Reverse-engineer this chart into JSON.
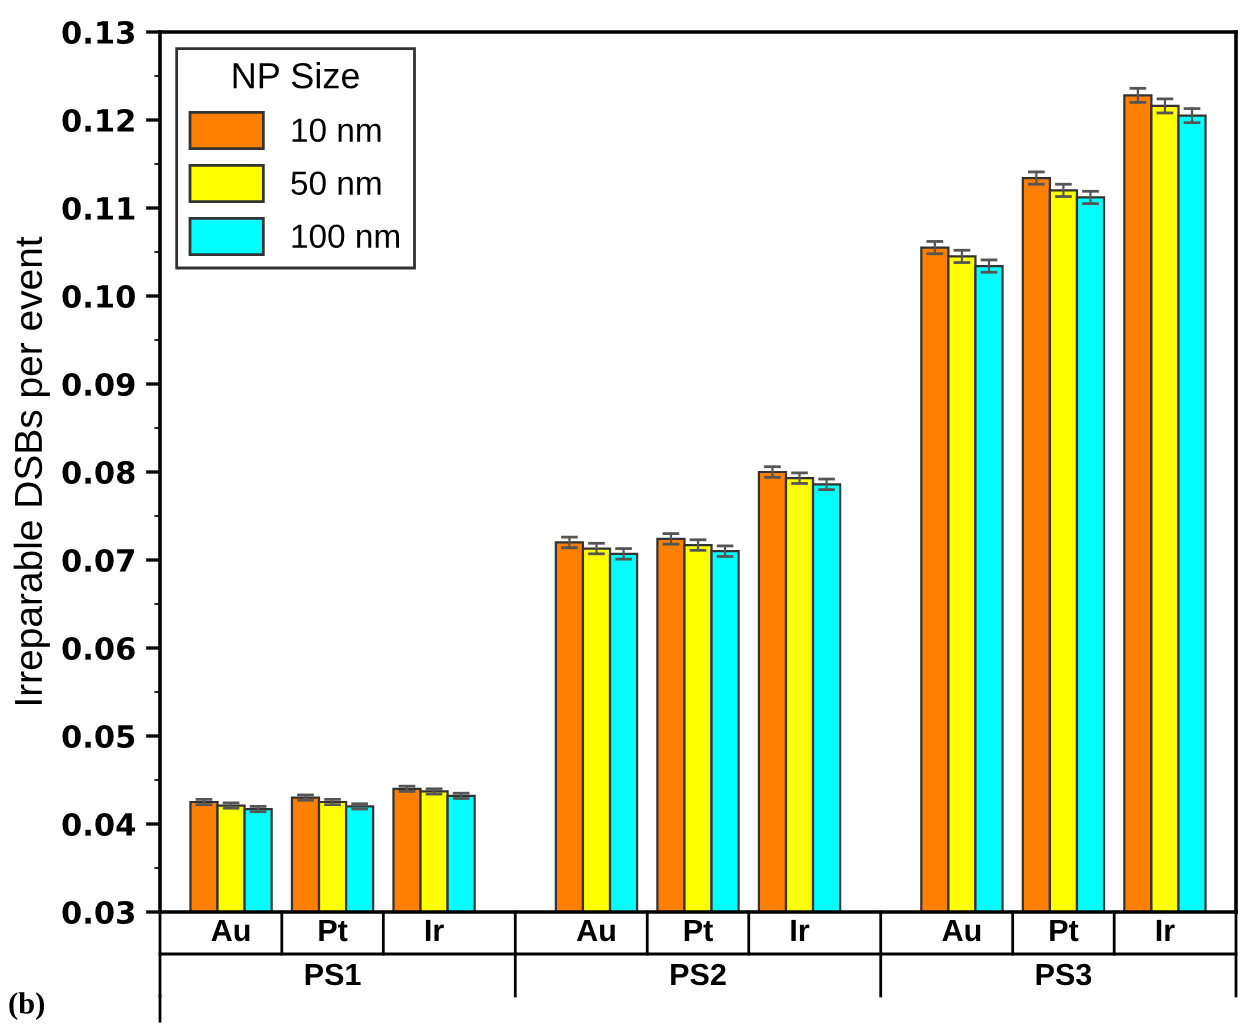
{
  "chart_data": {
    "type": "bar",
    "ylabel": "Irreparable DSBs per event",
    "legend_title": "NP Size",
    "categories": [
      "Au",
      "Pt",
      "Ir",
      "Au",
      "Pt",
      "Ir",
      "Au",
      "Pt",
      "Ir"
    ],
    "series": [
      {
        "name": "10 nm",
        "color": "#ff7f00",
        "values": [
          0.0425,
          0.043,
          0.044,
          0.072,
          0.0724,
          0.08,
          0.1055,
          0.1134,
          0.1228
        ],
        "errors": [
          0.0003,
          0.0003,
          0.0003,
          0.0006,
          0.0006,
          0.0006,
          0.0007,
          0.0007,
          0.0008
        ]
      },
      {
        "name": "50 nm",
        "color": "#ffff00",
        "values": [
          0.0421,
          0.0425,
          0.0437,
          0.0713,
          0.0717,
          0.0793,
          0.1045,
          0.112,
          0.1216
        ],
        "errors": [
          0.0003,
          0.0003,
          0.0003,
          0.0006,
          0.0006,
          0.0006,
          0.0007,
          0.0007,
          0.0008
        ]
      },
      {
        "name": "100 nm",
        "color": "#00ffff",
        "values": [
          0.0417,
          0.042,
          0.0432,
          0.0707,
          0.071,
          0.0786,
          0.1034,
          0.1112,
          0.1205
        ],
        "errors": [
          0.0003,
          0.0003,
          0.0003,
          0.0006,
          0.0006,
          0.0006,
          0.0007,
          0.0007,
          0.0008
        ]
      }
    ],
    "ylim": [
      0.03,
      0.13
    ],
    "yticks": [
      0.03,
      0.04,
      0.05,
      0.06,
      0.07,
      0.08,
      0.09,
      {
        "value": 0.1,
        "label": "0.10"
      },
      0.11,
      0.12,
      0.13
    ],
    "grid": false,
    "legend": "top left",
    "annotations": [
      "PS1",
      "PS2",
      "PS3",
      "(b)"
    ]
  }
}
